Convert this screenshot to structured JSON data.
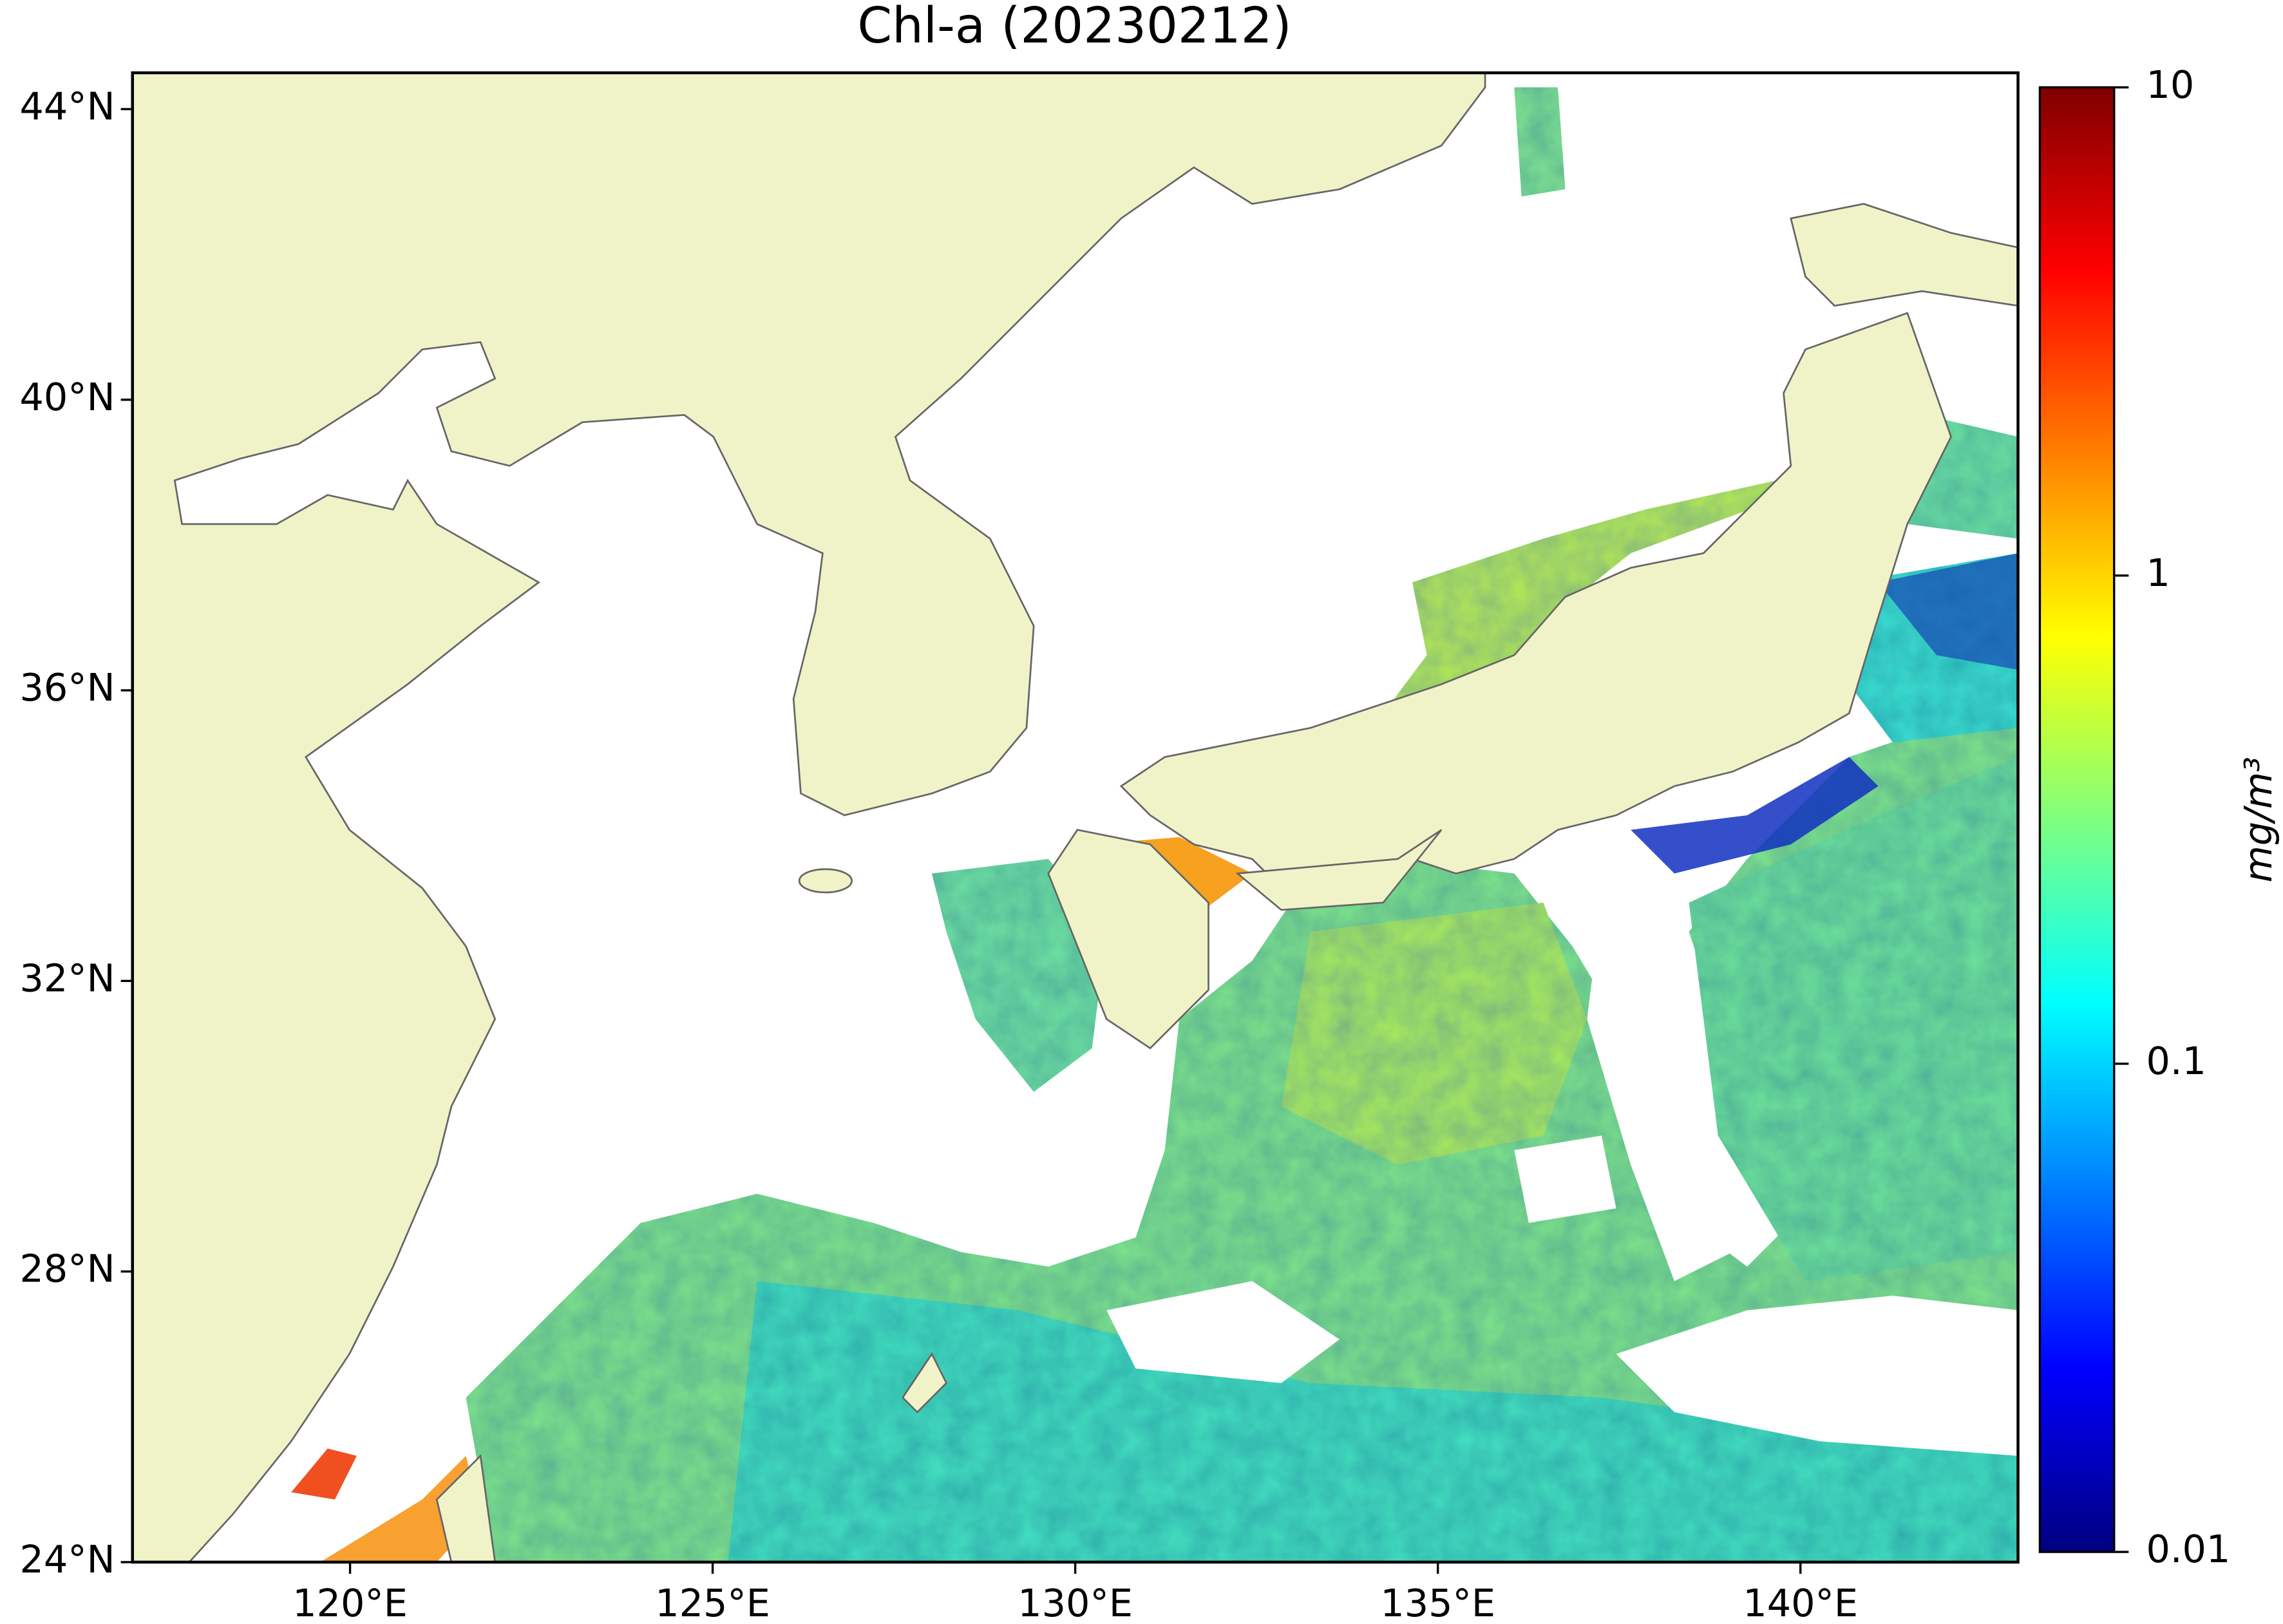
{
  "map": {
    "title": "Chl-a (20230212)",
    "xlim": [
      117,
      143
    ],
    "ylim": [
      24,
      44.5
    ],
    "xticks": [
      {
        "value": 120,
        "label": "120°E"
      },
      {
        "value": 125,
        "label": "125°E"
      },
      {
        "value": 130,
        "label": "130°E"
      },
      {
        "value": 135,
        "label": "135°E"
      },
      {
        "value": 140,
        "label": "140°E"
      }
    ],
    "yticks": [
      {
        "value": 24,
        "label": "24°N"
      },
      {
        "value": 28,
        "label": "28°N"
      },
      {
        "value": 32,
        "label": "32°N"
      },
      {
        "value": 36,
        "label": "36°N"
      },
      {
        "value": 40,
        "label": "40°N"
      },
      {
        "value": 44,
        "label": "44°N"
      }
    ],
    "land_color": "#f0f3c8",
    "colorbar": {
      "scale": "log",
      "lim": [
        0.01,
        10
      ],
      "ticks": [
        0.01,
        0.1,
        1,
        10
      ],
      "label": "mg/m³",
      "colormap": "jet"
    }
  }
}
